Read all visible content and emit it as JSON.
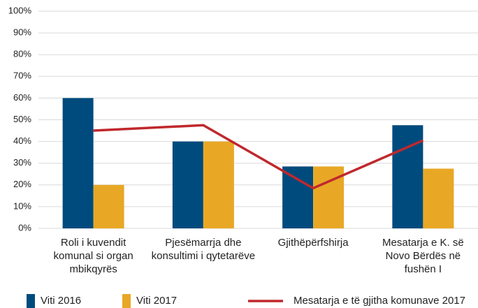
{
  "chart_data": {
    "type": "bar",
    "categories": [
      "Roli i kuvendit komunal si organ mbikqyrës",
      "Pjesëmarrja dhe konsultimi i qytetarëve",
      "Gjithëpërfshirja",
      "Mesatarja e K. së Novo Bërdës në fushën I"
    ],
    "series": [
      {
        "name": "Viti 2016",
        "color": "#004b7d",
        "values": [
          60,
          40,
          28.5,
          47.5
        ]
      },
      {
        "name": "Viti 2017",
        "color": "#e8a826",
        "values": [
          20,
          40,
          28.5,
          27.5
        ]
      },
      {
        "name": "Mesatarja e të gjitha komunave 2017",
        "color": "#c0282d",
        "type": "line",
        "values": [
          45,
          47.5,
          18.5,
          40.5
        ]
      }
    ],
    "ylim": [
      0,
      100
    ],
    "yticks": [
      {
        "value": 0,
        "label": "0%"
      },
      {
        "value": 10,
        "label": "10%"
      },
      {
        "value": 20,
        "label": "20%"
      },
      {
        "value": 30,
        "label": "30%"
      },
      {
        "value": 40,
        "label": "40%"
      },
      {
        "value": 50,
        "label": "50%"
      },
      {
        "value": 60,
        "label": "60%"
      },
      {
        "value": 70,
        "label": "70%"
      },
      {
        "value": 80,
        "label": "80%"
      },
      {
        "value": 90,
        "label": "90%"
      },
      {
        "value": 100,
        "label": "100%"
      }
    ],
    "grid": true
  }
}
